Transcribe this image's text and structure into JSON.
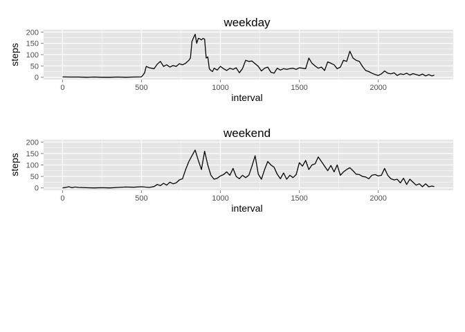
{
  "chart_data": [
    {
      "type": "line",
      "title": "weekday",
      "xlabel": "interval",
      "ylabel": "steps",
      "xlim": [
        -120,
        2475
      ],
      "ylim": [
        -10,
        210
      ],
      "xticks": [
        0,
        500,
        1000,
        1500,
        2000
      ],
      "yticks": [
        0,
        50,
        100,
        150,
        200
      ],
      "grid": true,
      "series": [
        {
          "color": "#000000",
          "x": [
            0,
            50,
            100,
            150,
            200,
            250,
            300,
            350,
            400,
            450,
            500,
            510,
            520,
            530,
            550,
            580,
            600,
            620,
            640,
            660,
            680,
            700,
            720,
            740,
            760,
            780,
            800,
            810,
            820,
            830,
            840,
            850,
            860,
            870,
            880,
            890,
            900,
            910,
            920,
            930,
            940,
            950,
            960,
            980,
            1000,
            1020,
            1040,
            1060,
            1080,
            1100,
            1120,
            1140,
            1160,
            1180,
            1200,
            1220,
            1240,
            1260,
            1280,
            1300,
            1320,
            1340,
            1360,
            1380,
            1400,
            1420,
            1440,
            1460,
            1480,
            1500,
            1520,
            1540,
            1560,
            1580,
            1600,
            1620,
            1640,
            1660,
            1680,
            1700,
            1720,
            1740,
            1760,
            1780,
            1800,
            1820,
            1840,
            1860,
            1880,
            1900,
            1920,
            1940,
            1960,
            1980,
            2000,
            2020,
            2040,
            2060,
            2080,
            2100,
            2120,
            2140,
            2160,
            2180,
            2200,
            2220,
            2240,
            2260,
            2280,
            2300,
            2320,
            2340,
            2355
          ],
          "y": [
            2,
            1,
            1,
            0,
            1,
            0,
            0,
            1,
            0,
            1,
            2,
            10,
            20,
            48,
            42,
            38,
            58,
            70,
            48,
            55,
            45,
            52,
            48,
            60,
            55,
            62,
            75,
            85,
            158,
            175,
            190,
            150,
            172,
            170,
            165,
            172,
            168,
            85,
            90,
            38,
            30,
            25,
            40,
            32,
            48,
            38,
            30,
            40,
            35,
            42,
            20,
            38,
            75,
            70,
            72,
            60,
            48,
            28,
            40,
            45,
            22,
            18,
            40,
            32,
            38,
            35,
            38,
            40,
            35,
            42,
            40,
            38,
            85,
            62,
            50,
            40,
            45,
            30,
            68,
            62,
            55,
            38,
            45,
            75,
            70,
            115,
            85,
            75,
            70,
            48,
            30,
            25,
            18,
            12,
            8,
            15,
            28,
            18,
            15,
            20,
            8,
            15,
            12,
            18,
            10,
            16,
            12,
            8,
            14,
            6,
            12,
            6,
            10
          ]
        }
      ]
    },
    {
      "type": "line",
      "title": "weekend",
      "xlabel": "interval",
      "ylabel": "steps",
      "xlim": [
        -120,
        2475
      ],
      "ylim": [
        -10,
        210
      ],
      "xticks": [
        0,
        500,
        1000,
        1500,
        2000
      ],
      "yticks": [
        0,
        50,
        100,
        150,
        200
      ],
      "grid": true,
      "series": [
        {
          "color": "#000000",
          "x": [
            0,
            20,
            40,
            60,
            80,
            100,
            150,
            200,
            250,
            300,
            350,
            400,
            450,
            500,
            550,
            580,
            600,
            620,
            640,
            660,
            680,
            700,
            720,
            740,
            760,
            780,
            800,
            820,
            840,
            860,
            880,
            900,
            920,
            940,
            960,
            980,
            1000,
            1020,
            1040,
            1060,
            1080,
            1100,
            1120,
            1140,
            1160,
            1180,
            1200,
            1220,
            1240,
            1260,
            1280,
            1300,
            1320,
            1340,
            1360,
            1380,
            1400,
            1420,
            1440,
            1460,
            1480,
            1500,
            1520,
            1540,
            1560,
            1580,
            1600,
            1620,
            1640,
            1660,
            1680,
            1700,
            1720,
            1740,
            1760,
            1780,
            1800,
            1820,
            1840,
            1860,
            1880,
            1900,
            1920,
            1940,
            1960,
            1980,
            2000,
            2020,
            2040,
            2060,
            2080,
            2100,
            2120,
            2140,
            2160,
            2180,
            2200,
            2220,
            2240,
            2260,
            2280,
            2300,
            2320,
            2340,
            2355
          ],
          "y": [
            0,
            2,
            5,
            1,
            4,
            2,
            1,
            0,
            1,
            0,
            2,
            4,
            3,
            5,
            2,
            6,
            15,
            10,
            20,
            12,
            25,
            18,
            22,
            35,
            40,
            80,
            115,
            140,
            165,
            120,
            80,
            160,
            100,
            55,
            38,
            42,
            52,
            58,
            70,
            55,
            85,
            50,
            40,
            55,
            45,
            55,
            95,
            140,
            60,
            38,
            80,
            115,
            100,
            90,
            60,
            40,
            65,
            38,
            55,
            45,
            58,
            110,
            95,
            120,
            80,
            100,
            105,
            135,
            115,
            95,
            75,
            98,
            70,
            100,
            55,
            70,
            80,
            88,
            75,
            60,
            58,
            50,
            48,
            40,
            55,
            58,
            52,
            55,
            85,
            55,
            40,
            35,
            38,
            22,
            42,
            15,
            38,
            25,
            12,
            18,
            5,
            18,
            5,
            8,
            6
          ]
        }
      ]
    }
  ]
}
